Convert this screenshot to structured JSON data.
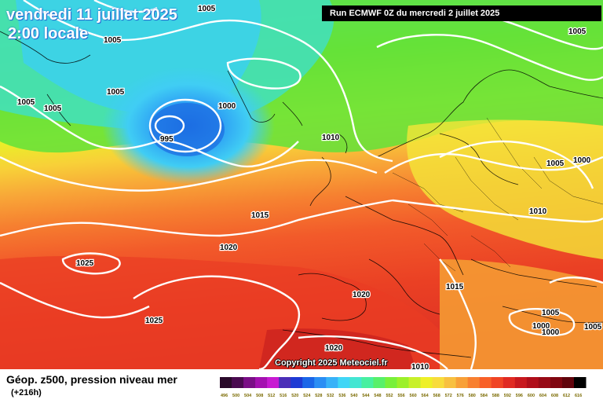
{
  "header": {
    "date": "vendredi 11 juillet 2025",
    "time": "2:00 locale",
    "run": "Run ECMWF 0Z du mercredi 2 juillet 2025"
  },
  "copyright": "Copyright 2025 Meteociel.fr",
  "footer": {
    "title": "Géop. z500, pression niveau mer",
    "subtitle": "(+216h)"
  },
  "isobar_labels": [
    "1005",
    "1005",
    "1005",
    "1005",
    "1005",
    "1000",
    "995",
    "1010",
    "1005",
    "1005",
    "1000",
    "1010",
    "1015",
    "1020",
    "1025",
    "1020",
    "1015",
    "1025",
    "1020",
    "1005",
    "1000",
    "1000",
    "1010",
    "1005"
  ],
  "colorbar": {
    "labels": [
      "496",
      "500",
      "504",
      "508",
      "512",
      "516",
      "520",
      "524",
      "528",
      "532",
      "536",
      "540",
      "544",
      "548",
      "552",
      "556",
      "560",
      "564",
      "568",
      "572",
      "576",
      "580",
      "584",
      "588",
      "592",
      "596",
      "600",
      "604",
      "608",
      "612",
      "616"
    ],
    "colors": [
      "#2a0a2a",
      "#4a0a50",
      "#7a0e86",
      "#a410b0",
      "#c81ad2",
      "#4b2eb8",
      "#1e3ad4",
      "#1a66e8",
      "#2a8ef4",
      "#38b2f8",
      "#40d6f6",
      "#44e6d2",
      "#48f0a0",
      "#58f06a",
      "#78f03a",
      "#9cf02a",
      "#c8f02a",
      "#eef028",
      "#f8dc3c",
      "#f8c040",
      "#f8a038",
      "#f88030",
      "#f86028",
      "#f04424",
      "#e02a22",
      "#c8181e",
      "#b00e1a",
      "#980a16",
      "#800610",
      "#60040c",
      "#000000"
    ]
  }
}
